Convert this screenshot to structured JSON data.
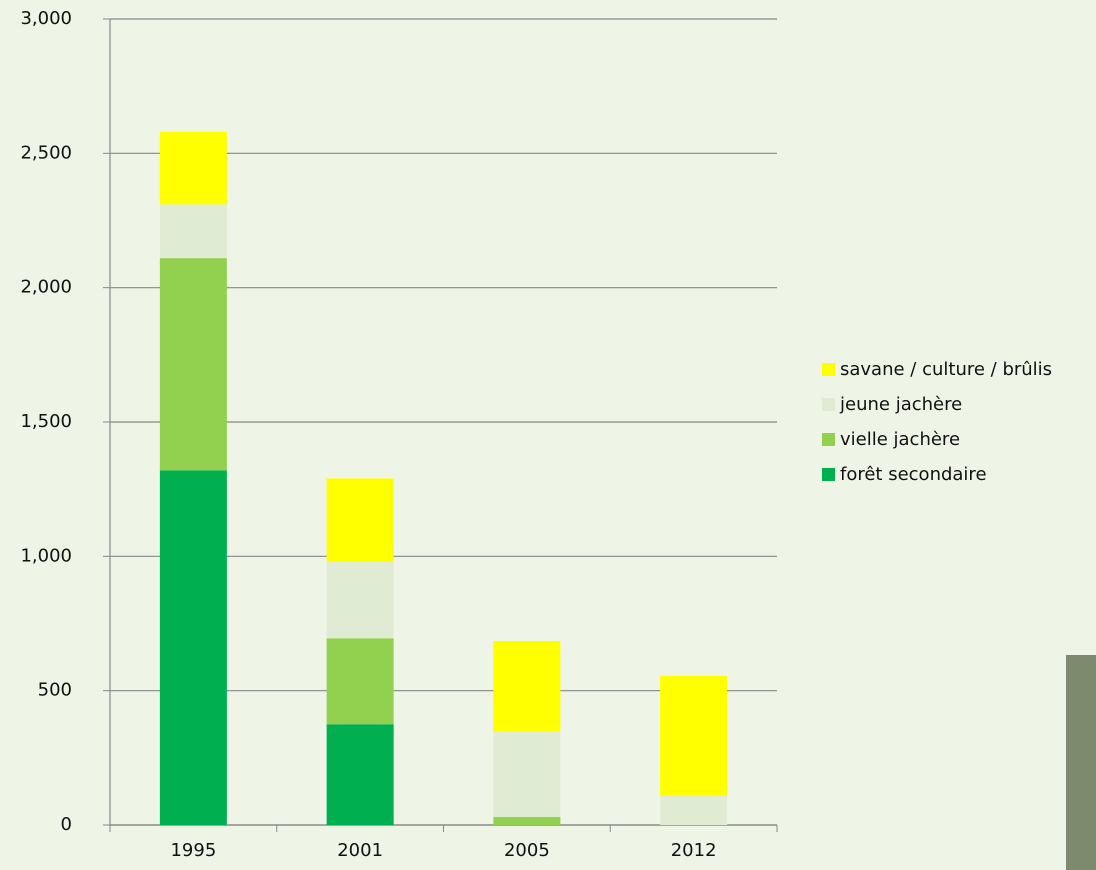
{
  "chart_data": {
    "type": "stacked-bar",
    "categories": [
      "1995",
      "2001",
      "2005",
      "2012"
    ],
    "series": [
      {
        "name": "forêt secondaire",
        "color": "#00b050",
        "values": [
          1320,
          375,
          0,
          0
        ]
      },
      {
        "name": "vielle jachère",
        "color": "#92d050",
        "values": [
          790,
          320,
          30,
          0
        ]
      },
      {
        "name": "jeune jachère",
        "color": "#e0ebd4",
        "values": [
          200,
          285,
          320,
          110
        ]
      },
      {
        "name": "savane / culture / brûlis",
        "color": "#ffff00",
        "values": [
          270,
          310,
          335,
          445
        ]
      }
    ],
    "ylim": [
      0,
      3000
    ],
    "yticks": [
      0,
      500,
      {
        "value": 1000,
        "label": "1,000"
      },
      {
        "value": 1500,
        "label": "1,500"
      },
      {
        "value": 2000,
        "label": "2,000"
      },
      {
        "value": 2500,
        "label": "2,500"
      },
      {
        "value": 3000,
        "label": "3,000"
      }
    ],
    "grid": true,
    "legend": "right"
  }
}
